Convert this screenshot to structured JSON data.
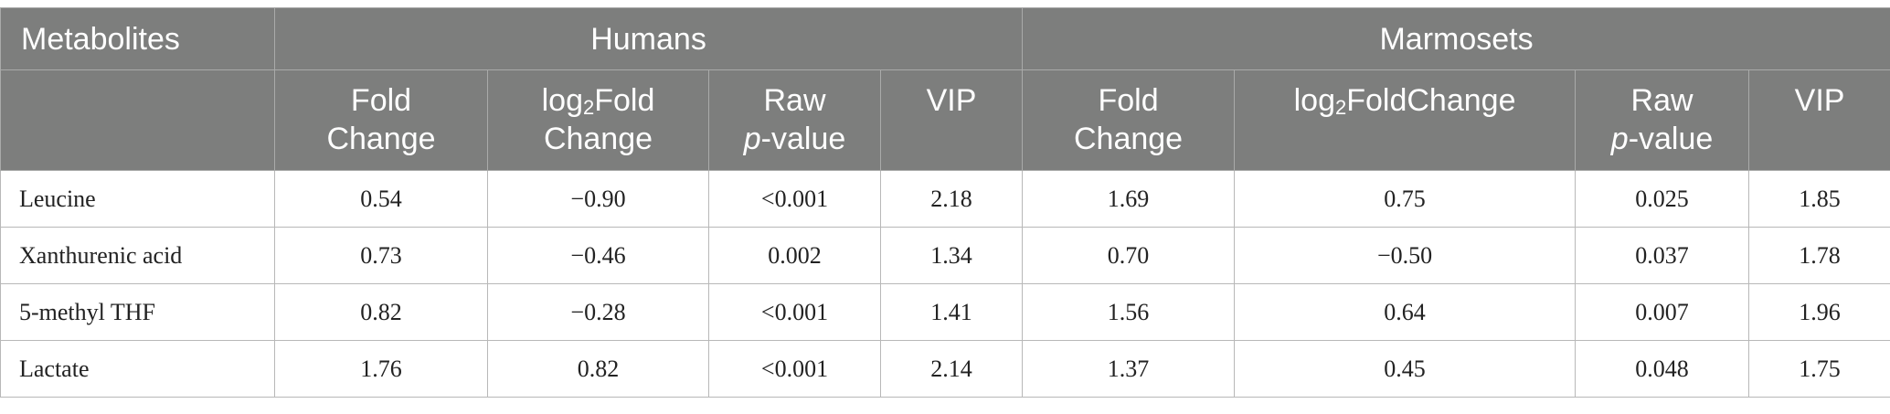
{
  "table": {
    "header": {
      "metabolites": "Metabolites",
      "humans": "Humans",
      "marmosets": "Marmosets"
    },
    "subheader": {
      "fold_change_1": "Fold",
      "fold_change_2": "Change",
      "log2_prefix": "log",
      "log2_sub": "2",
      "log2_fold_1": "Fold",
      "log2_fold_2": "Change",
      "log2_foldchange": "FoldChange",
      "raw_1": "Raw",
      "raw_p": "p",
      "raw_value": "-value",
      "vip": "VIP"
    },
    "rows": [
      {
        "name": "Leucine",
        "h_fc": "0.54",
        "h_log2": "−0.90",
        "h_p": "<0.001",
        "h_vip": "2.18",
        "m_fc": "1.69",
        "m_log2": "0.75",
        "m_p": "0.025",
        "m_vip": "1.85"
      },
      {
        "name": "Xanthurenic acid",
        "h_fc": "0.73",
        "h_log2": "−0.46",
        "h_p": "0.002",
        "h_vip": "1.34",
        "m_fc": "0.70",
        "m_log2": "−0.50",
        "m_p": "0.037",
        "m_vip": "1.78"
      },
      {
        "name": "5-methyl THF",
        "h_fc": "0.82",
        "h_log2": "−0.28",
        "h_p": "<0.001",
        "h_vip": "1.41",
        "m_fc": "1.56",
        "m_log2": "0.64",
        "m_p": "0.007",
        "m_vip": "1.96"
      },
      {
        "name": "Lactate",
        "h_fc": "1.76",
        "h_log2": "0.82",
        "h_p": "<0.001",
        "h_vip": "2.14",
        "m_fc": "1.37",
        "m_log2": "0.45",
        "m_p": "0.048",
        "m_vip": "1.75"
      }
    ]
  }
}
